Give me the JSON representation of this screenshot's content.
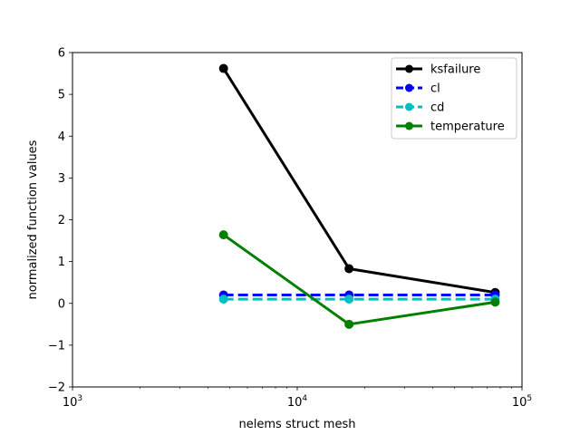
{
  "chart_data": {
    "type": "line",
    "xscale": "log",
    "xlim": [
      1000,
      100000
    ],
    "ylim": [
      -2,
      6
    ],
    "xlabel": "nelems struct mesh",
    "ylabel": "normalized function values",
    "x_ticks": [
      {
        "value": 1000,
        "mantissa": "10",
        "exp": "3"
      },
      {
        "value": 10000,
        "mantissa": "10",
        "exp": "4"
      },
      {
        "value": 100000,
        "mantissa": "10",
        "exp": "5"
      }
    ],
    "y_ticks": [
      -2,
      -1,
      0,
      1,
      2,
      3,
      4,
      5,
      6
    ],
    "x": [
      4700,
      17000,
      76000
    ],
    "series": [
      {
        "name": "ksfailure",
        "color": "#000000",
        "dashed": false,
        "values": [
          5.62,
          0.83,
          0.26
        ]
      },
      {
        "name": "cl",
        "color": "#0000ff",
        "dashed": true,
        "values": [
          0.2,
          0.2,
          0.2
        ]
      },
      {
        "name": "cd",
        "color": "#00bfbf",
        "dashed": true,
        "values": [
          0.1,
          0.1,
          0.1
        ]
      },
      {
        "name": "temperature",
        "color": "#008000",
        "dashed": false,
        "values": [
          1.64,
          -0.5,
          0.03
        ]
      }
    ],
    "legend_position": "top-right",
    "grid": false
  }
}
